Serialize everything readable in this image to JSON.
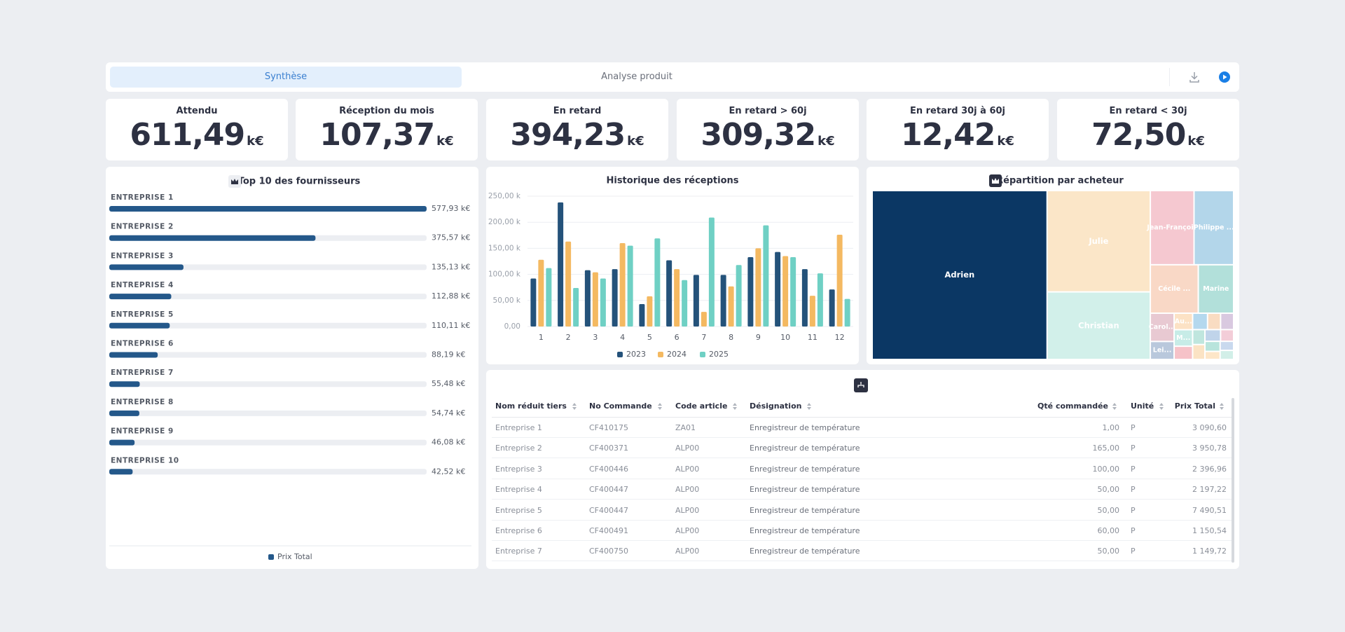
{
  "tabs": [
    "Synthèse",
    "Analyse produit"
  ],
  "kpis": [
    {
      "title": "Attendu",
      "value": "611,49",
      "unit": "k€"
    },
    {
      "title": "Réception du mois",
      "value": "107,37",
      "unit": "k€"
    },
    {
      "title": "En retard",
      "value": "394,23",
      "unit": "k€"
    },
    {
      "title": "En retard > 60j",
      "value": "309,32",
      "unit": "k€"
    },
    {
      "title": "En retard 30j à 60j",
      "value": "12,42",
      "unit": "k€"
    },
    {
      "title": "En retard < 30j",
      "value": "72,50",
      "unit": "k€"
    }
  ],
  "chart_data": [
    {
      "type": "hbar",
      "title": "Top 10 des fournisseurs",
      "categories": [
        "ENTREPRISE 1",
        "ENTREPRISE 2",
        "ENTREPRISE 3",
        "ENTREPRISE 4",
        "ENTREPRISE 5",
        "ENTREPRISE 6",
        "ENTREPRISE 7",
        "ENTREPRISE 8",
        "ENTREPRISE 9",
        "ENTREPRISE 10"
      ],
      "series": [
        {
          "name": "Prix Total",
          "color": "#24588a",
          "values": [
            577.93,
            375.57,
            135.13,
            112.88,
            110.11,
            88.19,
            55.48,
            54.74,
            46.08,
            42.52
          ],
          "value_labels": [
            "577,93 k€",
            "375,57 k€",
            "135,13 k€",
            "112,88 k€",
            "110,11 k€",
            "88,19 k€",
            "55,48 k€",
            "54,74 k€",
            "46,08 k€",
            "42,52 k€"
          ]
        }
      ]
    },
    {
      "type": "bar",
      "title": "Historique des réceptions",
      "categories": [
        1,
        2,
        3,
        4,
        5,
        6,
        7,
        8,
        9,
        10,
        11,
        12
      ],
      "series": [
        {
          "name": "2023",
          "color": "#24527a",
          "values": [
            92,
            238,
            108,
            110,
            43,
            127,
            99,
            99,
            133,
            143,
            110,
            71
          ]
        },
        {
          "name": "2024",
          "color": "#f4b961",
          "values": [
            128,
            163,
            104,
            160,
            58,
            110,
            28,
            77,
            150,
            135,
            59,
            176
          ]
        },
        {
          "name": "2025",
          "color": "#6fd0c4",
          "values": [
            112,
            74,
            92,
            155,
            169,
            89,
            209,
            118,
            194,
            133,
            102,
            53
          ]
        }
      ],
      "ylim": [
        0,
        250
      ],
      "yticks": [
        {
          "value": 0,
          "label": "0,00"
        },
        {
          "value": 50,
          "label": "50,00 k"
        },
        {
          "value": 100,
          "label": "100,00 k"
        },
        {
          "value": 150,
          "label": "150,00 k"
        },
        {
          "value": 200,
          "label": "200,00 k"
        },
        {
          "value": 250,
          "label": "250,00 k"
        }
      ],
      "grid": true
    },
    {
      "type": "treemap",
      "title": "Répartition par acheteur",
      "labels": [
        "Adrien",
        "Julie",
        "Christian",
        "Jean-François",
        "Philippe ...",
        "Cécile ...",
        "Marine",
        "Carol...",
        "Lei...",
        "Au...",
        "M...",
        null,
        null,
        null,
        null,
        null,
        null,
        null,
        null,
        null,
        null,
        null,
        null
      ],
      "values": [
        48.3,
        17.1,
        11.4,
        5.3,
        4.8,
        3.8,
        2.8,
        1.1,
        0.7,
        0.5,
        0.5,
        0.4,
        0.4,
        0.35,
        0.35,
        0.3,
        0.3,
        0.3,
        0.25,
        0.25,
        0.2,
        0.2,
        0.2
      ],
      "colors": [
        "#0b3764",
        "#fbe6c8",
        "#d2f0ea",
        "#f5c8d0",
        "#b3d6ea",
        "#f9d8c6",
        "#b2e0da",
        "#e8c9d2",
        "#b9c8dc",
        "#fce2c5",
        "#c7ece7",
        "#f6c2c8",
        "#b4d8ee",
        "#f9dcc2",
        "#d9c9e0",
        "#bfe6de",
        "#fbe3c4",
        "#c0d4ea",
        "#f3cdd8",
        "#b8e4dc",
        "#fde6c8",
        "#c9d9ee",
        "#d2efe8"
      ]
    }
  ],
  "table": {
    "columns": [
      "Nom réduit tiers",
      "No Commande",
      "Code article",
      "Désignation",
      "Qté commandée",
      "Unité",
      "Prix Total"
    ],
    "rows": [
      [
        "Entreprise 1",
        "CF410175",
        "ZA01",
        "Enregistreur de température",
        "1,00",
        "P",
        "3 090,60"
      ],
      [
        "Entreprise 2",
        "CF400371",
        "ALP00",
        "Enregistreur de température",
        "165,00",
        "P",
        "3 950,78"
      ],
      [
        "Entreprise 3",
        "CF400446",
        "ALP00",
        "Enregistreur de température",
        "100,00",
        "P",
        "2 396,96"
      ],
      [
        "Entreprise 4",
        "CF400447",
        "ALP00",
        "Enregistreur de température",
        "50,00",
        "P",
        "2 197,22"
      ],
      [
        "Entreprise 5",
        "CF400447",
        "ALP00",
        "Enregistreur de température",
        "50,00",
        "P",
        "7 490,51"
      ],
      [
        "Entreprise 6",
        "CF400491",
        "ALP00",
        "Enregistreur de température",
        "60,00",
        "P",
        "1 150,54"
      ],
      [
        "Entreprise 7",
        "CF400750",
        "ALP00",
        "Enregistreur de température",
        "50,00",
        "P",
        "1 149,72"
      ]
    ]
  }
}
